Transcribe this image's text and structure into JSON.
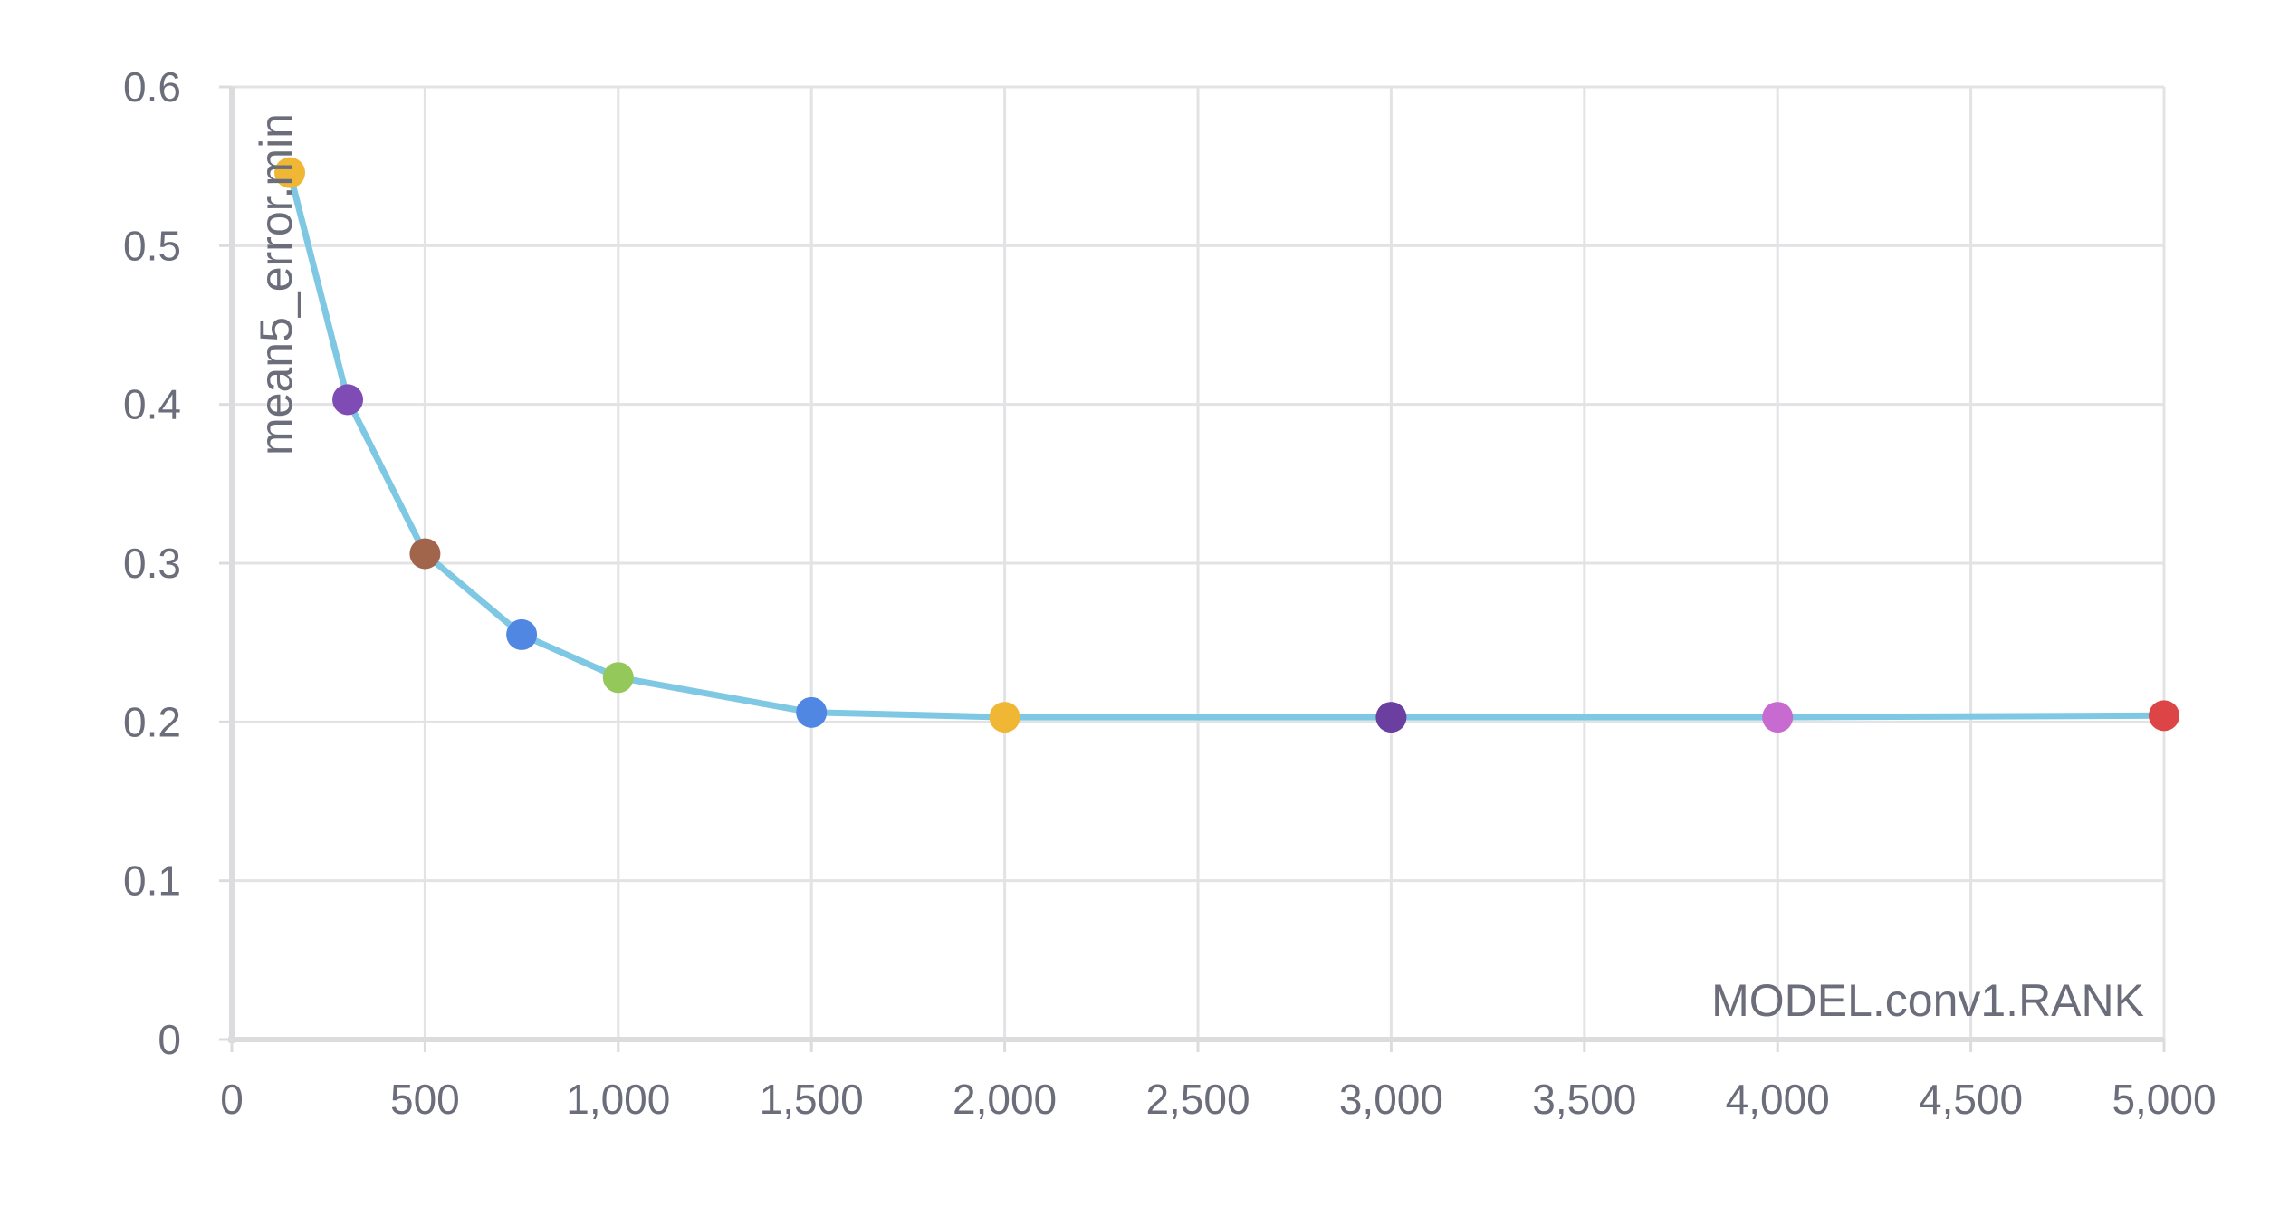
{
  "chart_data": {
    "type": "line",
    "title": "",
    "xlabel": "MODEL.conv1.RANK",
    "ylabel": "mean5_error.min",
    "xlim": [
      0,
      5000
    ],
    "ylim": [
      0,
      0.6
    ],
    "x_ticks": [
      0,
      500,
      1000,
      1500,
      2000,
      2500,
      3000,
      3500,
      4000,
      4500,
      5000
    ],
    "x_tick_labels": [
      "0",
      "500",
      "1,000",
      "1,500",
      "2,000",
      "2,500",
      "3,000",
      "3,500",
      "4,000",
      "4,500",
      "5,000"
    ],
    "y_ticks": [
      0,
      0.1,
      0.2,
      0.3,
      0.4,
      0.5,
      0.6
    ],
    "y_tick_labels": [
      "0",
      "0.1",
      "0.2",
      "0.3",
      "0.4",
      "0.5",
      "0.6"
    ],
    "grid": true,
    "legend": "none",
    "line_color": "#7ec8e3",
    "series": [
      {
        "x": [
          150,
          300,
          500,
          750,
          1000,
          1500,
          2000,
          3000,
          4000,
          5000
        ],
        "y": [
          0.546,
          0.403,
          0.306,
          0.255,
          0.228,
          0.206,
          0.203,
          0.203,
          0.203,
          0.204
        ],
        "point_colors": [
          "#f0b735",
          "#7f4bb5",
          "#a0654a",
          "#4f87e3",
          "#95c85a",
          "#4f87e3",
          "#f0b735",
          "#6b3fa0",
          "#c76bd0",
          "#dc4446"
        ]
      }
    ]
  }
}
